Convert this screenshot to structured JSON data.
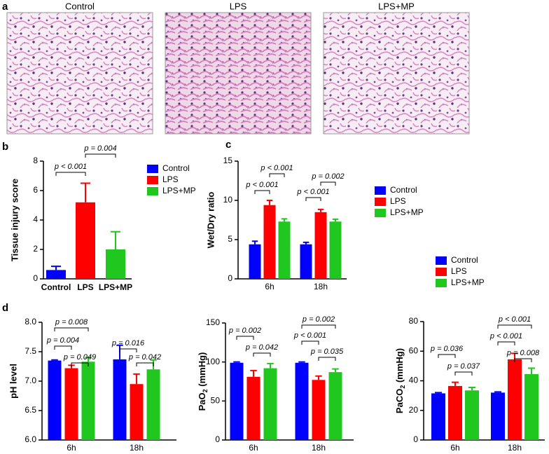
{
  "panel_labels": [
    "a",
    "b",
    "c",
    "d"
  ],
  "images": [
    "Control",
    "LPS",
    "LPS+MP"
  ],
  "chart_data": [
    {
      "type": "bar",
      "ylabel": "Tissue injury score",
      "categories": [
        "Control",
        "LPS",
        "LPS+MP"
      ],
      "values": [
        0.6,
        5.2,
        2.0
      ],
      "errors": [
        0.25,
        1.3,
        1.2
      ],
      "colors": [
        "#0000ff",
        "#ff0000",
        "#1fc71f"
      ],
      "ylim": [
        0,
        8
      ],
      "yticks": [
        0,
        2,
        4,
        6,
        8
      ],
      "legend": true,
      "annotations": [
        "p < 0.001",
        "p = 0.004"
      ]
    },
    {
      "type": "grouped_bar",
      "ylabel": "Wet/Dry ratio",
      "categories": [
        "6h",
        "18h"
      ],
      "series": [
        {
          "name": "Control",
          "color": "#0000ff",
          "values": [
            4.4,
            4.4
          ],
          "errors": [
            0.4,
            0.25
          ]
        },
        {
          "name": "LPS",
          "color": "#ff0000",
          "values": [
            9.4,
            8.5
          ],
          "errors": [
            0.6,
            0.35
          ]
        },
        {
          "name": "LPS+MP",
          "color": "#1fc71f",
          "values": [
            7.3,
            7.3
          ],
          "errors": [
            0.35,
            0.3
          ]
        }
      ],
      "ylim": [
        0,
        15
      ],
      "yticks": [
        0,
        5,
        10,
        15
      ],
      "legend": true,
      "annotations": [
        "p < 0.001",
        "p < 0.001",
        "p < 0.001",
        "p = 0.002"
      ]
    },
    {
      "type": "grouped_bar",
      "ylabel": "pH level",
      "categories": [
        "6h",
        "18h"
      ],
      "series": [
        {
          "name": "Control",
          "color": "#0000ff",
          "values": [
            7.35,
            7.37
          ],
          "errors": [
            0.01,
            0.24
          ]
        },
        {
          "name": "LPS",
          "color": "#ff0000",
          "values": [
            7.22,
            6.95
          ],
          "errors": [
            0.05,
            0.17
          ]
        },
        {
          "name": "LPS+MP",
          "color": "#1fc71f",
          "values": [
            7.33,
            7.2
          ],
          "errors": [
            0.07,
            0.16
          ]
        }
      ],
      "ylim": [
        6,
        8
      ],
      "yticks": [
        {
          "value": 6,
          "label": "6.0"
        },
        {
          "value": 6.5,
          "label": "6.5"
        },
        {
          "value": 7,
          "label": "7.0"
        },
        {
          "value": 7.5,
          "label": "7.5"
        },
        {
          "value": 8,
          "label": "8.0"
        }
      ],
      "legend": false,
      "annotations": [
        "p = 0.008",
        "p = 0.004",
        "p = 0.049",
        "p = 0.016",
        "p = 0.042"
      ]
    },
    {
      "type": "grouped_bar",
      "ylabel": [
        "PaO",
        "2",
        " (mmHg)"
      ],
      "categories": [
        "6h",
        "18h"
      ],
      "series": [
        {
          "name": "Control",
          "color": "#0000ff",
          "values": [
            99,
            99
          ],
          "errors": [
            1,
            1
          ]
        },
        {
          "name": "LPS",
          "color": "#ff0000",
          "values": [
            81,
            77
          ],
          "errors": [
            8,
            5
          ]
        },
        {
          "name": "LPS+MP",
          "color": "#1fc71f",
          "values": [
            92,
            87
          ],
          "errors": [
            6,
            4
          ]
        }
      ],
      "ylim": [
        0,
        150
      ],
      "yticks": [
        0,
        50,
        100,
        150
      ],
      "legend": false,
      "annotations": [
        "p = 0.002",
        "p = 0.042",
        "p = 0.002",
        "p < 0.001",
        "p = 0.035"
      ]
    },
    {
      "type": "grouped_bar",
      "ylabel": [
        "PaCO",
        "2",
        " (mmHg)"
      ],
      "categories": [
        "6h",
        "18h"
      ],
      "series": [
        {
          "name": "Control",
          "color": "#0000ff",
          "values": [
            31.5,
            32
          ],
          "errors": [
            0.5,
            0.5
          ]
        },
        {
          "name": "LPS",
          "color": "#ff0000",
          "values": [
            36.5,
            54.5
          ],
          "errors": [
            2.5,
            4
          ]
        },
        {
          "name": "LPS+MP",
          "color": "#1fc71f",
          "values": [
            33.5,
            44.5
          ],
          "errors": [
            2,
            4
          ]
        }
      ],
      "ylim": [
        0,
        80
      ],
      "yticks": [
        0,
        20,
        40,
        60,
        80
      ],
      "legend": true,
      "annotations": [
        "p = 0.036",
        "p = 0.037",
        "p < 0.001",
        "p < 0.001",
        "p = 0.008"
      ]
    }
  ]
}
